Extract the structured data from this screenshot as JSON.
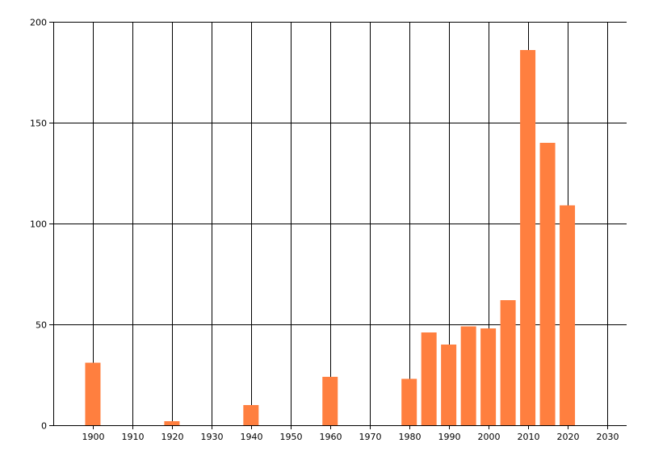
{
  "chart_data": {
    "type": "bar",
    "x": [
      1900,
      1920,
      1940,
      1960,
      1980,
      1985,
      1990,
      1995,
      2000,
      2005,
      2010,
      2015,
      2020
    ],
    "values": [
      31,
      2,
      10,
      24,
      23,
      46,
      40,
      49,
      48,
      62,
      186,
      140,
      109
    ],
    "xlim": [
      1890,
      2035
    ],
    "ylim": [
      0,
      200
    ],
    "xticks": [
      1900,
      1910,
      1920,
      1930,
      1940,
      1950,
      1960,
      1970,
      1980,
      1990,
      2000,
      2010,
      2020,
      2030
    ],
    "yticks": [
      0,
      50,
      100,
      150,
      200
    ],
    "title": "",
    "xlabel": "",
    "ylabel": "",
    "grid": true,
    "bar_color": "#FF7F3F",
    "gridline_color": "#000000"
  }
}
